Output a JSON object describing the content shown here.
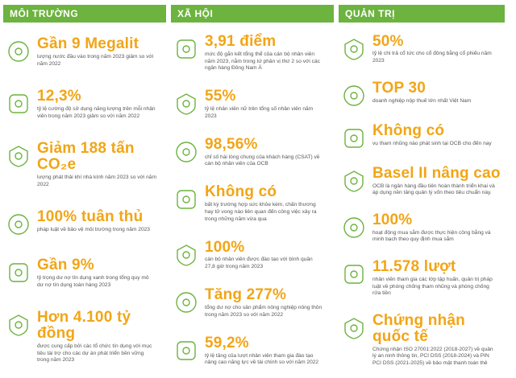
{
  "columns": [
    {
      "title": "MÔI TRƯỜNG",
      "items": [
        {
          "headline": "Gần 9 Megalit",
          "desc": "lượng nước đầu vào trong năm 2023 giảm so với năm 2022"
        },
        {
          "headline": "12,3%",
          "desc": "tỷ lệ cường độ sử dụng năng lượng trên mỗi nhân viên trong năm 2023 giảm so với năm 2022"
        },
        {
          "headline": "Giảm 188 tấn CO₂e",
          "desc": "lượng phát thải khí nhà kính năm 2023 so với năm 2022"
        },
        {
          "headline": "100% tuân thủ",
          "desc": "pháp luật về bảo vệ môi trường trong năm 2023"
        },
        {
          "headline": "Gần 9%",
          "desc": "tỷ trọng dư nợ tín dụng xanh trong tổng quy mô dư nợ tín dụng toàn hàng 2023"
        },
        {
          "headline": "Hơn 4.100 tỷ đồng",
          "desc": "được cung cấp bởi các tổ chức tín dụng với mục tiêu tài trợ cho các dự án phát triển bền vững trong năm 2023"
        }
      ]
    },
    {
      "title": "XÃ HỘI",
      "items": [
        {
          "headline": "3,91 điểm",
          "desc": "mức độ gắn kết tổng thể của cán bộ nhân viên năm 2023, nằm trong tứ phân vị thứ 2 so với các ngân hàng Đông Nam Á"
        },
        {
          "headline": "55%",
          "desc": "tỷ lệ nhân viên nữ trên tổng số nhân viên năm 2023"
        },
        {
          "headline": "98,56%",
          "desc": "chỉ số hài lòng chung của khách hàng (CSAT) về cán bộ nhân viên của OCB"
        },
        {
          "headline": "Không có",
          "desc": "bất kỳ trường hợp sức khỏe kém, chấn thương hay tử vong nào liên quan đến công việc xảy ra trong những năm vừa qua"
        },
        {
          "headline": "100%",
          "desc": "cán bộ nhân viên được đào tạo với bình quân 27,8 giờ trong năm 2023"
        },
        {
          "headline": "Tăng 277%",
          "desc": "tổng dư nợ cho sản phẩm nông nghiệp nông thôn trong năm 2023 so với năm 2022"
        },
        {
          "headline": "59,2%",
          "desc": "tỷ lệ tăng của lượt nhân viên tham gia đào tạo nâng cao năng lực về tài chính so với năm 2022"
        }
      ]
    },
    {
      "title": "QUẢN TRỊ",
      "items": [
        {
          "headline": "50%",
          "desc": "tỷ lệ chi trả cổ tức cho cổ đông bằng cổ phiếu năm 2023"
        },
        {
          "headline": "TOP 30",
          "desc": "doanh nghiệp nộp thuế lớn nhất Việt Nam"
        },
        {
          "headline": "Không có",
          "desc": "vụ tham nhũng nào phát sinh tại OCB cho đến nay"
        },
        {
          "headline": "Basel II nâng cao",
          "desc": "OCB là ngân hàng đầu tiên hoàn thành triển khai và áp dụng nền tảng quản lý vốn theo tiêu chuẩn này."
        },
        {
          "headline": "100%",
          "desc": "hoạt động mua sắm được thực hiện công bằng và minh bạch theo quy định mua sắm"
        },
        {
          "headline": "11.578 lượt",
          "desc": "nhân viên tham gia các lớp tập huấn, quản trị pháp luật về phòng chống tham nhũng và phòng chống rửa tiền"
        },
        {
          "headline": "Chứng nhận quốc tế",
          "desc": "Chứng nhận ISO 27001:2022 (2018-2027) về quản lý an ninh thông tin, PCI DSS (2018-2024) và PIN PCI DSS (2021-2025) về bảo mật thanh toán thẻ"
        }
      ]
    }
  ]
}
